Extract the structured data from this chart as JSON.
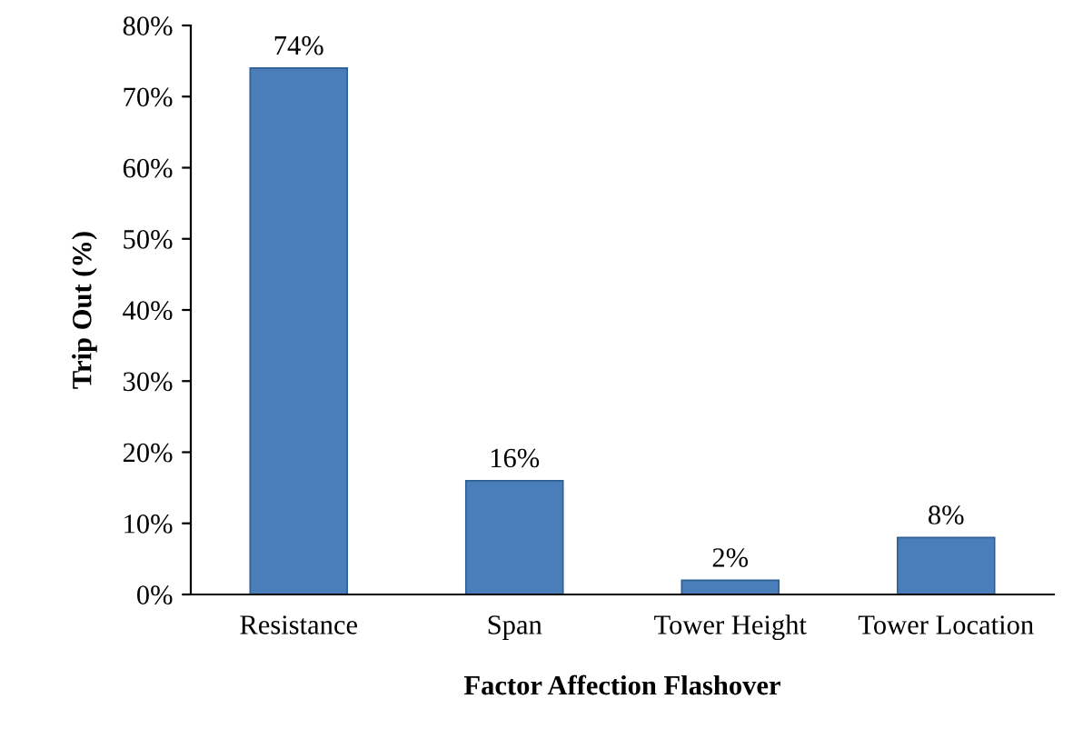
{
  "chart_data": {
    "type": "bar",
    "xlabel": "Factor Affection Flashover",
    "ylabel": "Trip Out (%)",
    "categories": [
      "Resistance",
      "Span",
      "Tower Height",
      "Tower Location"
    ],
    "values": [
      74,
      16,
      2,
      8
    ],
    "value_labels": [
      "74%",
      "16%",
      "2%",
      "8%"
    ],
    "color": "#4a7ebb",
    "ylim": [
      0,
      80
    ],
    "yticks": [
      {
        "value": 0,
        "label": "0%"
      },
      {
        "value": 10,
        "label": "10%"
      },
      {
        "value": 20,
        "label": "20%"
      },
      {
        "value": 30,
        "label": "30%"
      },
      {
        "value": 40,
        "label": "40%"
      },
      {
        "value": 50,
        "label": "50%"
      },
      {
        "value": 60,
        "label": "60%"
      },
      {
        "value": 70,
        "label": "70%"
      },
      {
        "value": 80,
        "label": "80%"
      }
    ],
    "grid": false,
    "legend": false
  }
}
